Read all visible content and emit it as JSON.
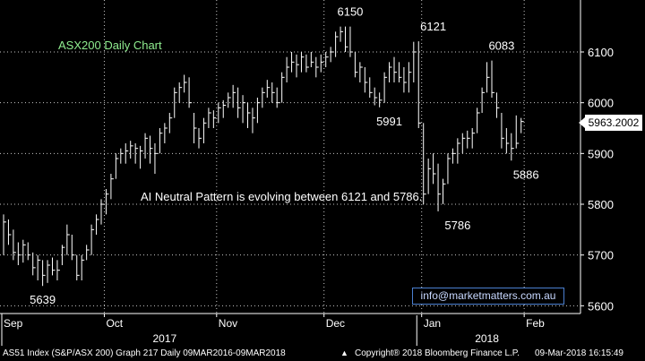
{
  "chart_data": {
    "type": "bar",
    "title": "ASX200 Daily Chart",
    "subtitle": "",
    "annotation": "AI Neutral Pattern is evolving between 6121 and 5786.",
    "ylim": [
      5590,
      6200
    ],
    "y_ticks": [
      6100,
      6000,
      5900,
      5800,
      5700,
      5600
    ],
    "y_tick_labels": [
      "6100",
      "6000",
      "5900",
      "5800",
      "5700",
      "5600"
    ],
    "x_tick_labels": [
      "Sep",
      "Oct",
      "Nov",
      "Dec",
      "Jan",
      "Feb"
    ],
    "x_tick_positions": [
      0,
      21,
      44,
      66,
      86,
      107
    ],
    "x_year_labels": [
      {
        "label": "2017",
        "index": 33
      },
      {
        "label": "2018",
        "index": 99
      }
    ],
    "x_year_boundaries": [
      0,
      85
    ],
    "grid": true,
    "last_price_label": "5963.2002",
    "last_price": 5963.2,
    "colors": {
      "background": "#000000",
      "grid": "#c8c8c8",
      "bars": "#ffffff",
      "title": "#90ee90",
      "accent": "#4a7fd0"
    },
    "peaks_troughs": [
      {
        "label": "5639",
        "index": 8,
        "value": 5639,
        "pos": "below"
      },
      {
        "label": "6150",
        "index": 71,
        "value": 6150,
        "pos": "above"
      },
      {
        "label": "5991",
        "index": 79,
        "value": 5991,
        "pos": "below"
      },
      {
        "label": "6121",
        "index": 88,
        "value": 6121,
        "pos": "above"
      },
      {
        "label": "5786",
        "index": 93,
        "value": 5786,
        "pos": "below"
      },
      {
        "label": "6083",
        "index": 102,
        "value": 6083,
        "pos": "above"
      },
      {
        "label": "5886",
        "index": 107,
        "value": 5886,
        "pos": "below"
      }
    ],
    "series": [
      {
        "values": [
          [
            5780,
            5700,
            5765
          ],
          [
            5770,
            5720,
            5740
          ],
          [
            5750,
            5690,
            5705
          ],
          [
            5725,
            5680,
            5700
          ],
          [
            5730,
            5685,
            5720
          ],
          [
            5725,
            5690,
            5700
          ],
          [
            5705,
            5660,
            5675
          ],
          [
            5700,
            5650,
            5690
          ],
          [
            5690,
            5639,
            5660
          ],
          [
            5690,
            5645,
            5680
          ],
          [
            5695,
            5660,
            5670
          ],
          [
            5690,
            5650,
            5670
          ],
          [
            5720,
            5680,
            5715
          ],
          [
            5760,
            5700,
            5740
          ],
          [
            5740,
            5690,
            5700
          ],
          [
            5700,
            5650,
            5660
          ],
          [
            5700,
            5650,
            5690
          ],
          [
            5720,
            5690,
            5710
          ],
          [
            5760,
            5700,
            5750
          ],
          [
            5780,
            5740,
            5770
          ],
          [
            5810,
            5760,
            5800
          ],
          [
            5830,
            5780,
            5820
          ],
          [
            5860,
            5810,
            5850
          ],
          [
            5900,
            5850,
            5890
          ],
          [
            5910,
            5880,
            5900
          ],
          [
            5920,
            5880,
            5905
          ],
          [
            5925,
            5890,
            5915
          ],
          [
            5920,
            5880,
            5910
          ],
          [
            5915,
            5870,
            5905
          ],
          [
            5940,
            5890,
            5930
          ],
          [
            5935,
            5880,
            5910
          ],
          [
            5920,
            5860,
            5900
          ],
          [
            5950,
            5900,
            5940
          ],
          [
            5960,
            5920,
            5950
          ],
          [
            5980,
            5940,
            5970
          ],
          [
            6030,
            5970,
            6020
          ],
          [
            6040,
            6000,
            6030
          ],
          [
            6055,
            6020,
            6040
          ],
          [
            6050,
            5990,
            6000
          ],
          [
            5980,
            5920,
            5950
          ],
          [
            5950,
            5910,
            5930
          ],
          [
            5970,
            5920,
            5960
          ],
          [
            5990,
            5950,
            5980
          ],
          [
            5985,
            5950,
            5970
          ],
          [
            6000,
            5960,
            5990
          ],
          [
            6005,
            5970,
            5995
          ],
          [
            6020,
            5990,
            6010
          ],
          [
            6035,
            5990,
            6020
          ],
          [
            6030,
            5970,
            5990
          ],
          [
            6015,
            5960,
            6000
          ],
          [
            6000,
            5950,
            5980
          ],
          [
            5990,
            5940,
            5970
          ],
          [
            6010,
            5960,
            6000
          ],
          [
            6030,
            5990,
            6020
          ],
          [
            6045,
            6010,
            6030
          ],
          [
            6040,
            6000,
            6020
          ],
          [
            6030,
            5990,
            6000
          ],
          [
            6060,
            6000,
            6050
          ],
          [
            6090,
            6040,
            6070
          ],
          [
            6100,
            6060,
            6080
          ],
          [
            6095,
            6050,
            6075
          ],
          [
            6100,
            6060,
            6090
          ],
          [
            6095,
            6060,
            6070
          ],
          [
            6100,
            6070,
            6080
          ],
          [
            6090,
            6050,
            6070
          ],
          [
            6095,
            6060,
            6080
          ],
          [
            6100,
            6070,
            6090
          ],
          [
            6110,
            6080,
            6100
          ],
          [
            6140,
            6090,
            6130
          ],
          [
            6150,
            6120,
            6140
          ],
          [
            6150,
            6100,
            6110
          ],
          [
            6150,
            6090,
            6100
          ],
          [
            6100,
            6050,
            6060
          ],
          [
            6080,
            6040,
            6070
          ],
          [
            6070,
            6020,
            6040
          ],
          [
            6050,
            6010,
            6020
          ],
          [
            6030,
            5995,
            6010
          ],
          [
            6020,
            5991,
            6005
          ],
          [
            6060,
            6000,
            6050
          ],
          [
            6080,
            6040,
            6070
          ],
          [
            6090,
            6040,
            6060
          ],
          [
            6080,
            6040,
            6050
          ],
          [
            6070,
            6020,
            6040
          ],
          [
            6080,
            6020,
            6060
          ],
          [
            6120,
            6040,
            6100
          ],
          [
            6121,
            5950,
            5960
          ],
          [
            5960,
            5800,
            5820
          ],
          [
            5890,
            5820,
            5870
          ],
          [
            5900,
            5840,
            5860
          ],
          [
            5880,
            5786,
            5820
          ],
          [
            5850,
            5800,
            5840
          ],
          [
            5900,
            5840,
            5890
          ],
          [
            5910,
            5880,
            5900
          ],
          [
            5930,
            5880,
            5920
          ],
          [
            5940,
            5900,
            5930
          ],
          [
            5945,
            5910,
            5930
          ],
          [
            5950,
            5910,
            5940
          ],
          [
            5990,
            5940,
            5980
          ],
          [
            6030,
            5980,
            6020
          ],
          [
            6080,
            6020,
            6050
          ],
          [
            6083,
            6010,
            6020
          ],
          [
            6020,
            5970,
            5990
          ],
          [
            5980,
            5910,
            5930
          ],
          [
            5950,
            5900,
            5920
          ],
          [
            5940,
            5886,
            5910
          ],
          [
            5975,
            5910,
            5920
          ],
          [
            5970,
            5940,
            5963
          ]
        ]
      }
    ]
  },
  "ui": {
    "email_text": "info@marketmatters.com.au",
    "footer": {
      "left": "AS51 Index (S&P/ASX 200) Graph 217  Daily 09MAR2016-09MAR2018",
      "center": "Copyright® 2018 Bloomberg Finance L.P.",
      "right": "09-Mar-2018 16:15:49"
    }
  }
}
